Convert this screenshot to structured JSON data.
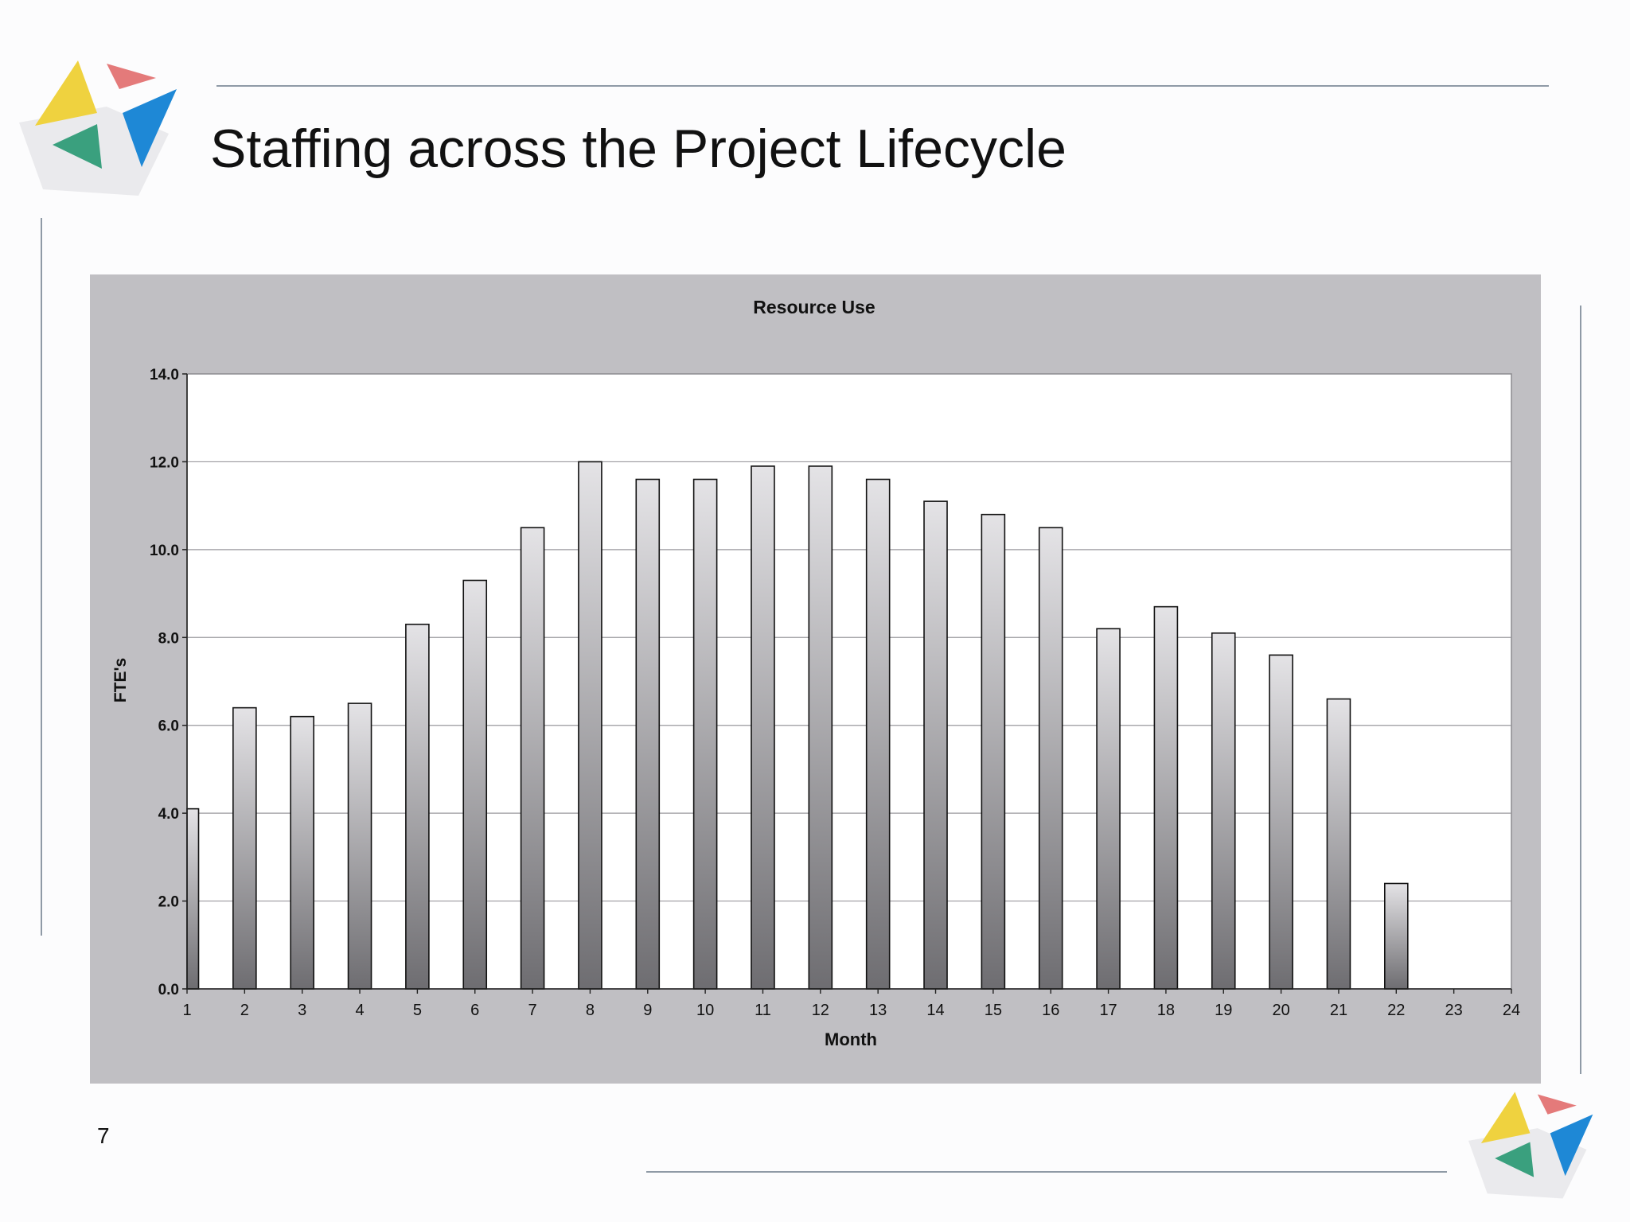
{
  "slide": {
    "title": "Staffing across the Project Lifecycle",
    "page_number": "7"
  },
  "colors": {
    "chart_background": "#c0bfc3",
    "plot_background": "#ffffff",
    "bar_top": "#e4e3e6",
    "bar_bottom": "#6e6d71",
    "logo_yellow": "#efd23f",
    "logo_red": "#e47a7a",
    "logo_green": "#3aa07e",
    "logo_blue": "#1e88d6"
  },
  "chart_data": {
    "type": "bar",
    "title": "Resource Use",
    "xlabel": "Month",
    "ylabel": "FTE's",
    "ylim": [
      0,
      14
    ],
    "yticks": [
      "0.0",
      "2.0",
      "4.0",
      "6.0",
      "8.0",
      "10.0",
      "12.0",
      "14.0"
    ],
    "grid": true,
    "legend": "none",
    "categories": [
      "1",
      "2",
      "3",
      "4",
      "5",
      "6",
      "7",
      "8",
      "9",
      "10",
      "11",
      "12",
      "13",
      "14",
      "15",
      "16",
      "17",
      "18",
      "19",
      "20",
      "21",
      "22",
      "23",
      "24"
    ],
    "values": [
      4.1,
      6.4,
      6.2,
      6.5,
      8.3,
      9.3,
      10.5,
      12.0,
      11.6,
      11.6,
      11.9,
      11.9,
      11.6,
      11.1,
      10.8,
      10.5,
      8.2,
      8.7,
      8.1,
      7.6,
      6.6,
      2.4,
      0,
      0
    ]
  }
}
